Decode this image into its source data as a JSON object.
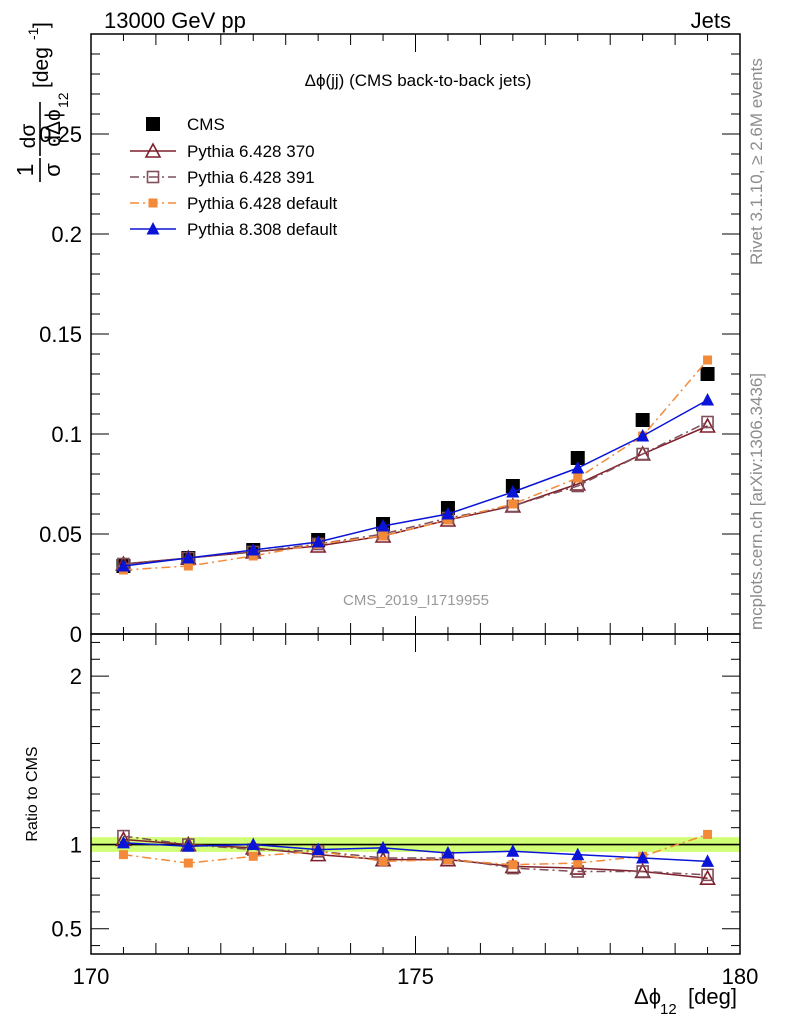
{
  "header": {
    "left": "13000 GeV pp",
    "right": "Jets"
  },
  "side_notes": {
    "rivet": "Rivet 3.1.10, ≥ 2.6M events",
    "mcplots": "mcplots.cern.ch [arXiv:1306.3436]"
  },
  "chart_data": [
    {
      "type": "scatter",
      "title": "Δϕ(jj) (CMS back-to-back jets)",
      "watermark": "CMS_2019_I1719955",
      "ylabel": "1/σ dσ/dΔϕ_12 [deg^-1]",
      "ylim": [
        0,
        0.3
      ],
      "xlim": [
        170,
        180
      ],
      "y_ticks": [
        {
          "value": 0,
          "label": "0"
        },
        {
          "value": 0.05,
          "label": "0.05"
        },
        {
          "value": 0.1,
          "label": "0.1"
        },
        {
          "value": 0.15,
          "label": "0.15"
        },
        {
          "value": 0.2,
          "label": "0.2"
        },
        {
          "value": 0.25,
          "label": "0.25"
        }
      ],
      "legend_position": "top-left",
      "x": [
        170.5,
        171.5,
        172.5,
        173.5,
        174.5,
        175.5,
        176.5,
        177.5,
        178.5,
        179.5
      ],
      "series": [
        {
          "name": "CMS",
          "style": "data",
          "color": "#000000",
          "marker": "square",
          "values": [
            0.034,
            0.038,
            0.042,
            0.047,
            0.055,
            0.063,
            0.074,
            0.088,
            0.107,
            0.13
          ]
        },
        {
          "name": "Pythia 6.428 370",
          "style": "solid",
          "color": "#7f1f2b",
          "marker": "open-triangle",
          "values": [
            0.035,
            0.038,
            0.041,
            0.044,
            0.049,
            0.057,
            0.064,
            0.075,
            0.09,
            0.104
          ]
        },
        {
          "name": "Pythia 6.428 391",
          "style": "dashdot",
          "color": "#7f4f5a",
          "marker": "open-square",
          "values": [
            0.035,
            0.038,
            0.041,
            0.045,
            0.05,
            0.058,
            0.064,
            0.074,
            0.09,
            0.106
          ]
        },
        {
          "name": "Pythia 6.428 default",
          "style": "dashdot",
          "color": "#f38a3a",
          "marker": "filled-square-small",
          "values": [
            0.032,
            0.034,
            0.039,
            0.045,
            0.049,
            0.057,
            0.065,
            0.078,
            0.099,
            0.137
          ]
        },
        {
          "name": "Pythia 8.308 default",
          "style": "solid",
          "color": "#0a14d6",
          "marker": "filled-triangle",
          "values": [
            0.034,
            0.038,
            0.042,
            0.046,
            0.054,
            0.06,
            0.071,
            0.083,
            0.099,
            0.117
          ]
        }
      ]
    },
    {
      "type": "scatter",
      "ylabel": "Ratio to CMS",
      "xlabel": "Δϕ_12 [deg]",
      "ylim": [
        0.35,
        2.25
      ],
      "xlim": [
        170,
        180
      ],
      "y_ticks": [
        {
          "value": 0.5,
          "label": "0.5"
        },
        {
          "value": 1,
          "label": "1"
        },
        {
          "value": 2,
          "label": "2"
        }
      ],
      "x_ticks": [
        {
          "value": 170,
          "label": "170"
        },
        {
          "value": 175,
          "label": "175"
        },
        {
          "value": 180,
          "label": "180"
        }
      ],
      "uncertainty_band": {
        "low": 0.98,
        "high": 1.02,
        "color": "#ccff66"
      },
      "x": [
        170.5,
        171.5,
        172.5,
        173.5,
        174.5,
        175.5,
        176.5,
        177.5,
        178.5,
        179.5
      ],
      "series": [
        {
          "name": "Pythia 6.428 370",
          "style": "solid",
          "color": "#7f1f2b",
          "marker": "open-triangle",
          "values": [
            1.03,
            1.0,
            0.98,
            0.94,
            0.91,
            0.91,
            0.87,
            0.86,
            0.84,
            0.8
          ]
        },
        {
          "name": "Pythia 6.428 391",
          "style": "dashdot",
          "color": "#7f4f5a",
          "marker": "open-square",
          "values": [
            1.05,
            1.0,
            0.97,
            0.96,
            0.92,
            0.92,
            0.86,
            0.84,
            0.84,
            0.82
          ]
        },
        {
          "name": "Pythia 6.428 default",
          "style": "dashdot",
          "color": "#f38a3a",
          "marker": "filled-square-small",
          "values": [
            0.94,
            0.89,
            0.93,
            0.96,
            0.9,
            0.91,
            0.88,
            0.89,
            0.93,
            1.06
          ]
        },
        {
          "name": "Pythia 8.308 default",
          "style": "solid",
          "color": "#0a14d6",
          "marker": "filled-triangle",
          "values": [
            1.01,
            0.99,
            1.0,
            0.97,
            0.98,
            0.95,
            0.96,
            0.94,
            0.92,
            0.9
          ]
        }
      ]
    }
  ]
}
